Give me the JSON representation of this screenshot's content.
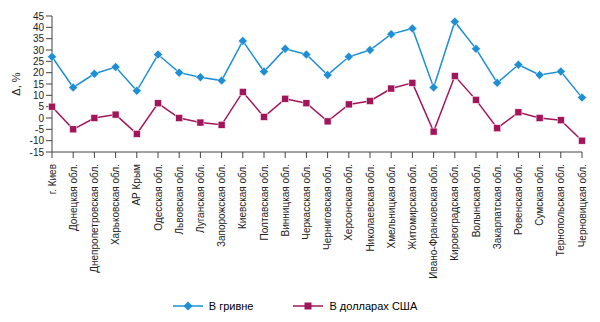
{
  "chart_data": {
    "type": "line",
    "y_label": "Δ, %",
    "categories": [
      "г. Киев",
      "Донецкая обл.",
      "Днепропетровская обл.",
      "Харьковская обл.",
      "АР Крым",
      "Одесская обл.",
      "Львовская обл.",
      "Луганская обл.",
      "Запорожская обл.",
      "Киевская обл.",
      "Полтавская обл.",
      "Винницкая обл.",
      "Черкасская обл.",
      "Черниговская обл.",
      "Херсонская обл.",
      "Николаевская обл.",
      "Хмельницкая обл.",
      "Житомирская обл.",
      "Ивано-Франковская обл.",
      "Кировоградская обл.",
      "Волынская обл.",
      "Закарпатская обл.",
      "Ровенская обл.",
      "Сумская обл.",
      "Тернопольская обл.",
      "Черновицкая обл."
    ],
    "series": [
      {
        "name": "В гривне",
        "color": "#1e8fd5",
        "marker": "diamond",
        "values": [
          27,
          13.5,
          19.5,
          22.5,
          12,
          28,
          20,
          18,
          16.5,
          34,
          20.5,
          30.5,
          28,
          19,
          27,
          30,
          37,
          39.5,
          13.5,
          42.5,
          30.5,
          15.5,
          23.5,
          19,
          20.5,
          9
        ]
      },
      {
        "name": "В долларах США",
        "color": "#a3155b",
        "marker": "square",
        "values": [
          5,
          -5,
          0,
          1.5,
          -7,
          6.5,
          0,
          -2,
          -3,
          11.5,
          0.5,
          8.5,
          6.5,
          -1.5,
          6,
          7.5,
          13,
          15.5,
          -6,
          18.5,
          8,
          -4.5,
          2.5,
          0,
          -1,
          -10
        ]
      }
    ],
    "ylim": [
      -15,
      45
    ],
    "yticks": [
      -15,
      -10,
      -5,
      0,
      5,
      10,
      15,
      20,
      25,
      30,
      35,
      40,
      45
    ],
    "grid": false,
    "legend": "bottom"
  }
}
